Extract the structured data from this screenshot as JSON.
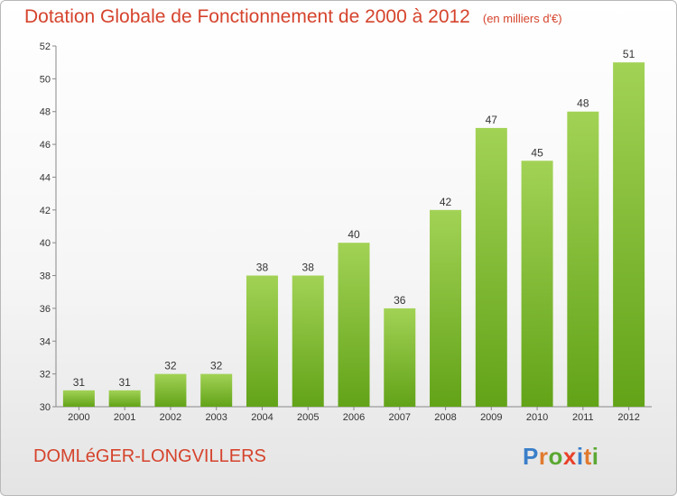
{
  "title": "Dotation Globale de Fonctionnement de 2000 à 2012",
  "unit": "(en milliers d'€)",
  "commune": "DOMLéGER-LONGVILLERS",
  "logo": {
    "letters": [
      "P",
      "r",
      "o",
      "x",
      "i",
      "t",
      "i"
    ],
    "colors": [
      "#3a7fc9",
      "#e07a2e",
      "#5aa832",
      "#e8402a",
      "#3a7fc9",
      "#e07a2e",
      "#5aa832"
    ]
  },
  "colors": {
    "bar_top": "#a2d255",
    "bar_bottom": "#62a318",
    "title": "#d5432c"
  },
  "chart_data": {
    "type": "bar",
    "categories": [
      "2000",
      "2001",
      "2002",
      "2003",
      "2004",
      "2005",
      "2006",
      "2007",
      "2008",
      "2009",
      "2010",
      "2011",
      "2012"
    ],
    "values": [
      31,
      31,
      32,
      32,
      38,
      38,
      40,
      36,
      42,
      47,
      45,
      48,
      51
    ],
    "ylim": [
      30,
      52
    ],
    "yticks": [
      30,
      32,
      34,
      36,
      38,
      40,
      42,
      44,
      46,
      48,
      50,
      52
    ],
    "grid": false,
    "data_labels": true
  }
}
